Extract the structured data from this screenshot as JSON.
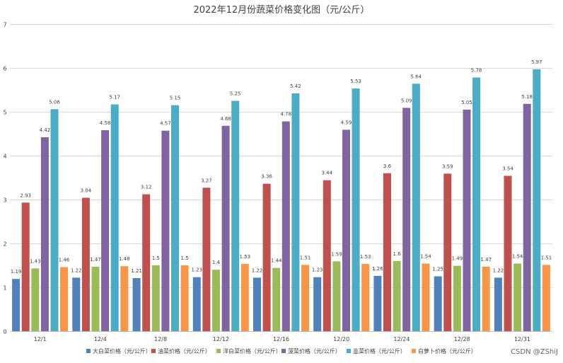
{
  "chart_data": {
    "type": "bar",
    "title": "2022年12月份蔬菜价格变化图（元/公斤）",
    "categories": [
      "12/1",
      "12/4",
      "12/8",
      "12/12",
      "12/16",
      "12/20",
      "12/24",
      "12/28",
      "12/31"
    ],
    "ylim": [
      0,
      7
    ],
    "yticks": [
      0,
      1,
      2,
      3,
      4,
      5,
      6,
      7
    ],
    "grid": true,
    "legend_position": "bottom",
    "series": [
      {
        "name": "大白菜价格（元/公斤）",
        "color": "#4f81bd",
        "values": [
          1.19,
          1.22,
          1.21,
          1.23,
          1.22,
          1.23,
          1.26,
          1.25,
          1.22
        ]
      },
      {
        "name": "油菜价格（元/公斤）",
        "color": "#c0504d",
        "values": [
          2.93,
          3.04,
          3.12,
          3.27,
          3.36,
          3.44,
          3.6,
          3.59,
          3.54
        ]
      },
      {
        "name": "洋白菜价格（元/公斤）",
        "color": "#9bbb59",
        "values": [
          1.43,
          1.47,
          1.5,
          1.4,
          1.44,
          1.59,
          1.6,
          1.49,
          1.54
        ]
      },
      {
        "name": "菠菜价格（元/公斤）",
        "color": "#8064a2",
        "values": [
          4.42,
          4.58,
          4.57,
          4.68,
          4.78,
          4.59,
          5.09,
          5.05,
          5.18
        ]
      },
      {
        "name": "韭菜价格（元/公斤）",
        "color": "#4bacc6",
        "values": [
          5.06,
          5.17,
          5.15,
          5.25,
          5.42,
          5.53,
          5.64,
          5.78,
          5.97
        ]
      },
      {
        "name": "白萝卜价格（元/公斤）",
        "color": "#f79646",
        "values": [
          1.46,
          1.48,
          1.5,
          1.53,
          1.51,
          1.53,
          1.54,
          1.47,
          1.51
        ]
      }
    ]
  },
  "watermark": "CSDN @ZShiJ"
}
